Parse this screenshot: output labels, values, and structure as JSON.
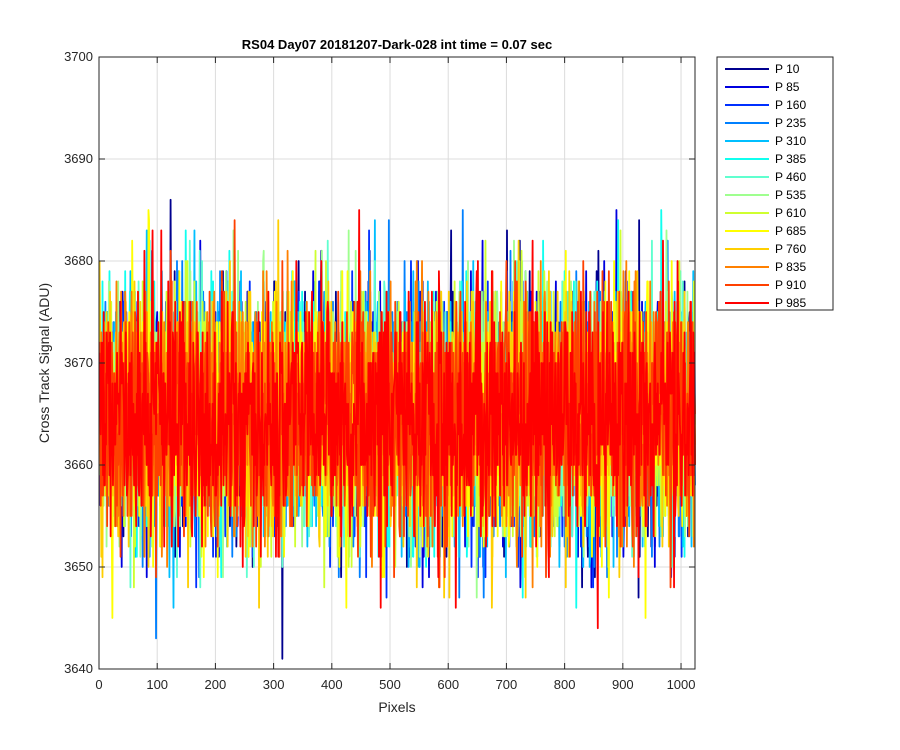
{
  "chart_data": {
    "type": "line",
    "title": "RS04 Day07 20181207-Dark-028 int time = 0.07 sec",
    "xlabel": "Pixels",
    "ylabel": "Cross Track Signal (ADU)",
    "xlim": [
      0,
      1024
    ],
    "ylim": [
      3640,
      3700
    ],
    "xticks": [
      0,
      100,
      200,
      300,
      400,
      500,
      600,
      700,
      800,
      900,
      1000
    ],
    "yticks": [
      3640,
      3650,
      3660,
      3670,
      3680,
      3690,
      3700
    ],
    "grid": true,
    "legend_position": "outside-top-right",
    "x_range": [
      1,
      1024
    ],
    "noise_center": 3665,
    "noise_std": 6,
    "noise_min": 3640,
    "noise_max": 3695,
    "series": [
      {
        "name": "P 10",
        "color": "#00008f"
      },
      {
        "name": "P 85",
        "color": "#0000df"
      },
      {
        "name": "P 160",
        "color": "#0030ff"
      },
      {
        "name": "P 235",
        "color": "#0080ff"
      },
      {
        "name": "P 310",
        "color": "#00bfff"
      },
      {
        "name": "P 385",
        "color": "#10ffef"
      },
      {
        "name": "P 460",
        "color": "#60ffcf"
      },
      {
        "name": "P 535",
        "color": "#9fff8f"
      },
      {
        "name": "P 610",
        "color": "#cfff30"
      },
      {
        "name": "P 685",
        "color": "#ffff00"
      },
      {
        "name": "P 760",
        "color": "#ffcf00"
      },
      {
        "name": "P 835",
        "color": "#ff8000"
      },
      {
        "name": "P 910",
        "color": "#ff4000"
      },
      {
        "name": "P 985",
        "color": "#ff0000"
      }
    ]
  }
}
